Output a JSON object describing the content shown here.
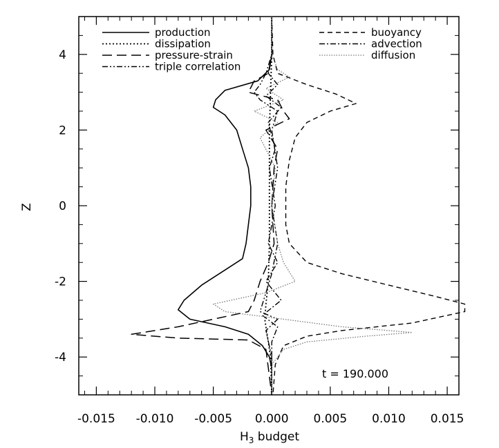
{
  "chart_data": {
    "type": "line",
    "xlabel": "H",
    "xlabel_sub": "3",
    "xlabel_rest": " budget",
    "ylabel": "Z",
    "xlim": [
      -0.0165,
      0.016
    ],
    "ylim": [
      -5,
      5
    ],
    "x_ticks": [
      -0.015,
      -0.01,
      -0.005,
      0.0,
      0.005,
      0.01,
      0.015
    ],
    "x_tick_labels": [
      "-0.015",
      "-0.010",
      "-0.005",
      "0.000",
      "0.005",
      "0.010",
      "0.015"
    ],
    "y_ticks": [
      -4,
      -2,
      0,
      2,
      4
    ],
    "y_tick_labels": [
      "-4",
      "-2",
      "0",
      "2",
      "4"
    ],
    "grid": false,
    "legend_placement": "top, two columns",
    "annotation": "t = 190.000",
    "series": [
      {
        "name": "production",
        "style": "solid",
        "points": [
          [
            0.0,
            5.0
          ],
          [
            0.0,
            4.0
          ],
          [
            -0.0002,
            3.6
          ],
          [
            -0.0012,
            3.3
          ],
          [
            -0.004,
            3.05
          ],
          [
            -0.0048,
            2.8
          ],
          [
            -0.005,
            2.6
          ],
          [
            -0.004,
            2.4
          ],
          [
            -0.003,
            2.0
          ],
          [
            -0.0025,
            1.5
          ],
          [
            -0.002,
            1.0
          ],
          [
            -0.0018,
            0.5
          ],
          [
            -0.0018,
            0.0
          ],
          [
            -0.002,
            -0.5
          ],
          [
            -0.0022,
            -1.0
          ],
          [
            -0.0025,
            -1.4
          ],
          [
            -0.004,
            -1.7
          ],
          [
            -0.006,
            -2.1
          ],
          [
            -0.0075,
            -2.5
          ],
          [
            -0.008,
            -2.75
          ],
          [
            -0.007,
            -3.0
          ],
          [
            -0.004,
            -3.2
          ],
          [
            -0.002,
            -3.4
          ],
          [
            -0.0008,
            -3.7
          ],
          [
            -0.0002,
            -4.0
          ],
          [
            0.0,
            -4.3
          ],
          [
            0.0,
            -5.0
          ]
        ]
      },
      {
        "name": "dissipation",
        "style": "dotted",
        "points": [
          [
            0.0,
            5.0
          ],
          [
            0.0,
            4.0
          ],
          [
            -0.0001,
            3.0
          ],
          [
            -0.0002,
            2.0
          ],
          [
            -0.0002,
            1.0
          ],
          [
            -0.0002,
            0.0
          ],
          [
            -0.0002,
            -1.0
          ],
          [
            -0.0003,
            -2.0
          ],
          [
            -0.0005,
            -2.6
          ],
          [
            -0.0006,
            -3.0
          ],
          [
            -0.0004,
            -3.4
          ],
          [
            -0.0001,
            -4.0
          ],
          [
            0.0,
            -5.0
          ]
        ]
      },
      {
        "name": "pressure-strain",
        "style": "longdash",
        "points": [
          [
            0.0,
            5.0
          ],
          [
            0.0,
            4.0
          ],
          [
            -0.0003,
            3.5
          ],
          [
            -0.0015,
            3.3
          ],
          [
            -0.002,
            3.0
          ],
          [
            0.0005,
            2.8
          ],
          [
            0.001,
            2.5
          ],
          [
            0.0015,
            2.3
          ],
          [
            -0.0005,
            2.0
          ],
          [
            0.0005,
            1.5
          ],
          [
            0.0002,
            1.0
          ],
          [
            0.0,
            0.0
          ],
          [
            0.0002,
            -1.0
          ],
          [
            -0.0003,
            -1.5
          ],
          [
            -0.001,
            -2.0
          ],
          [
            -0.0015,
            -2.5
          ],
          [
            -0.002,
            -2.8
          ],
          [
            -0.005,
            -3.0
          ],
          [
            -0.008,
            -3.2
          ],
          [
            -0.012,
            -3.4
          ],
          [
            -0.008,
            -3.5
          ],
          [
            -0.002,
            -3.55
          ],
          [
            -0.0005,
            -3.8
          ],
          [
            0.0,
            -5.0
          ]
        ]
      },
      {
        "name": "triple correlation",
        "style": "dashdotdot",
        "points": [
          [
            0.0,
            5.0
          ],
          [
            0.0,
            4.0
          ],
          [
            -0.0005,
            3.5
          ],
          [
            -0.001,
            3.2
          ],
          [
            -0.0015,
            3.0
          ],
          [
            -0.001,
            2.8
          ],
          [
            0.0005,
            2.5
          ],
          [
            0.0,
            2.0
          ],
          [
            0.0005,
            1.0
          ],
          [
            0.0,
            0.0
          ],
          [
            0.0005,
            -1.0
          ],
          [
            0.0,
            -1.8
          ],
          [
            -0.0005,
            -2.3
          ],
          [
            -0.001,
            -2.8
          ],
          [
            0.0005,
            -3.0
          ],
          [
            -0.0005,
            -3.3
          ],
          [
            0.0,
            -4.0
          ],
          [
            0.0,
            -5.0
          ]
        ]
      },
      {
        "name": "buoyancy",
        "style": "dashed",
        "points": [
          [
            0.0,
            5.0
          ],
          [
            0.0001,
            4.0
          ],
          [
            0.0005,
            3.5
          ],
          [
            0.003,
            3.2
          ],
          [
            0.0055,
            2.95
          ],
          [
            0.0072,
            2.7
          ],
          [
            0.005,
            2.5
          ],
          [
            0.003,
            2.2
          ],
          [
            0.002,
            1.8
          ],
          [
            0.0015,
            1.2
          ],
          [
            0.0012,
            0.5
          ],
          [
            0.0012,
            0.0
          ],
          [
            0.0012,
            -0.5
          ],
          [
            0.0015,
            -1.0
          ],
          [
            0.003,
            -1.5
          ],
          [
            0.006,
            -1.8
          ],
          [
            0.01,
            -2.1
          ],
          [
            0.014,
            -2.4
          ],
          [
            0.0165,
            -2.6
          ],
          [
            0.0165,
            -2.8
          ],
          [
            0.012,
            -3.1
          ],
          [
            0.006,
            -3.3
          ],
          [
            0.003,
            -3.45
          ],
          [
            0.001,
            -3.7
          ],
          [
            0.0003,
            -4.2
          ],
          [
            0.0001,
            -5.0
          ]
        ]
      },
      {
        "name": "advection",
        "style": "dashdot",
        "points": [
          [
            0.0,
            5.0
          ],
          [
            0.0,
            4.0
          ],
          [
            -0.0003,
            3.5
          ],
          [
            0.0005,
            3.2
          ],
          [
            -0.0005,
            2.9
          ],
          [
            0.0008,
            2.6
          ],
          [
            -0.0003,
            2.2
          ],
          [
            0.0003,
            1.5
          ],
          [
            -0.0002,
            1.0
          ],
          [
            0.0003,
            0.0
          ],
          [
            -0.0003,
            -1.0
          ],
          [
            0.0005,
            -1.5
          ],
          [
            -0.0005,
            -2.0
          ],
          [
            0.0008,
            -2.5
          ],
          [
            -0.0008,
            -2.9
          ],
          [
            0.0005,
            -3.2
          ],
          [
            0.0,
            -3.6
          ],
          [
            0.0,
            -5.0
          ]
        ]
      },
      {
        "name": "diffusion",
        "style": "finedot",
        "points": [
          [
            0.0,
            5.0
          ],
          [
            0.0,
            4.0
          ],
          [
            0.0005,
            3.6
          ],
          [
            0.0015,
            3.4
          ],
          [
            -0.0005,
            3.1
          ],
          [
            0.001,
            2.8
          ],
          [
            -0.0015,
            2.5
          ],
          [
            0.0005,
            2.2
          ],
          [
            -0.001,
            1.8
          ],
          [
            0.0003,
            1.0
          ],
          [
            0.0,
            0.0
          ],
          [
            0.0005,
            -1.0
          ],
          [
            0.001,
            -1.5
          ],
          [
            0.002,
            -2.0
          ],
          [
            -0.0005,
            -2.3
          ],
          [
            -0.005,
            -2.6
          ],
          [
            -0.004,
            -2.8
          ],
          [
            0.001,
            -3.0
          ],
          [
            0.006,
            -3.2
          ],
          [
            0.012,
            -3.35
          ],
          [
            0.008,
            -3.45
          ],
          [
            0.003,
            -3.6
          ],
          [
            0.001,
            -3.8
          ],
          [
            0.0,
            -4.2
          ],
          [
            0.0,
            -5.0
          ]
        ]
      }
    ]
  }
}
